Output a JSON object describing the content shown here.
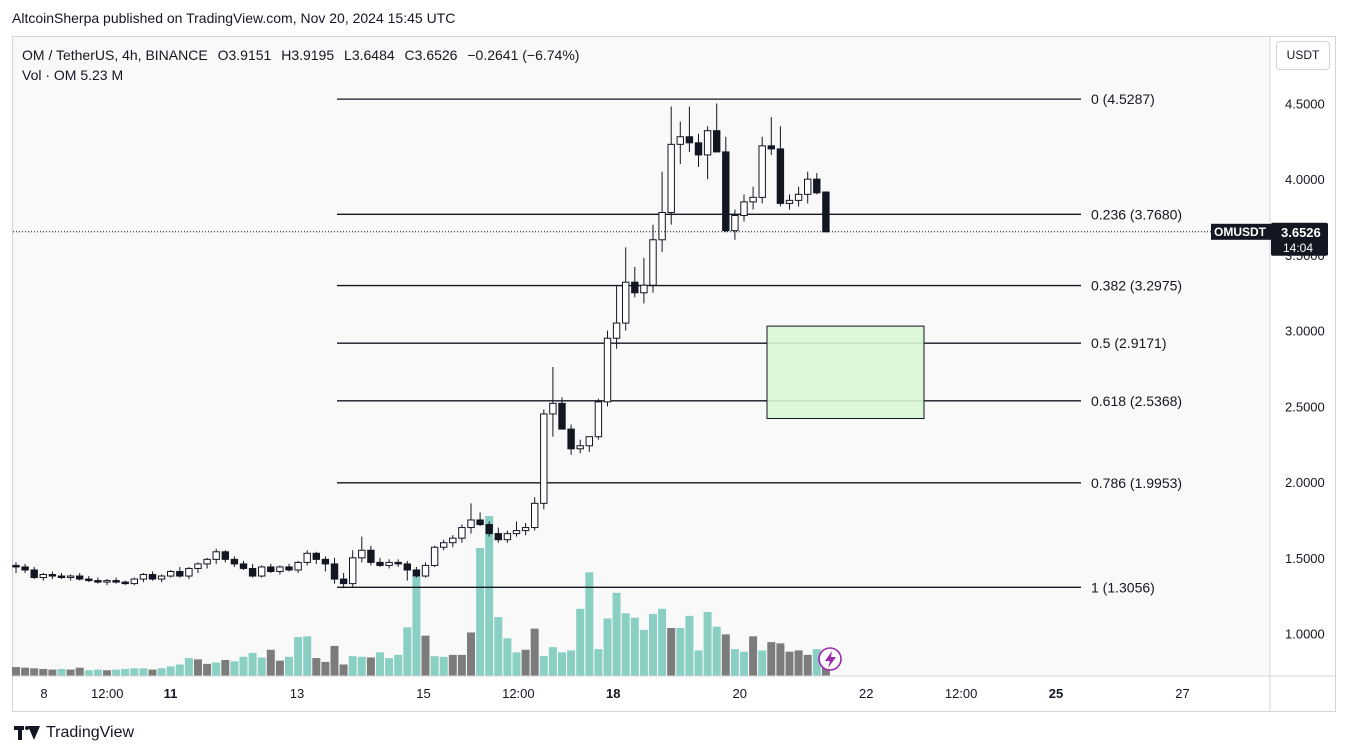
{
  "publisher": "AltcoinSherpa published on TradingView.com, Nov 20, 2024 15:45 UTC",
  "header": {
    "symbol": "OM / TetherUS, 4h, BINANCE",
    "open": "O3.9151",
    "high": "H3.9195",
    "low": "L3.6484",
    "close": "C3.6526",
    "change": "−0.2641 (−6.74%)",
    "volume": "Vol · OM  5.23 M"
  },
  "currency_button": "USDT",
  "footer_brand": "TradingView",
  "colors": {
    "up_body": "#ffffff",
    "down_body": "#131722",
    "candle_outline": "#131722",
    "volume_up": "#89cfc3",
    "volume_down": "#7c7c7c",
    "fib_line": "#131722",
    "zone_fill": "#d7f5d4",
    "zone_border": "#131722",
    "price_label_bg": "#131722",
    "flash_icon": "#9c27b0"
  },
  "chart_data": {
    "type": "candlestick",
    "symbol_label": "OMUSDT",
    "last_price": "3.6526",
    "countdown": "14:04",
    "last_value": 3.6526,
    "ylim": [
      0.72,
      4.8
    ],
    "y_ticks": [
      {
        "value": 4.5,
        "label": "4.5000"
      },
      {
        "value": 4.0,
        "label": "4.0000"
      },
      {
        "value": 3.5,
        "label": "3.5000"
      },
      {
        "value": 3.0,
        "label": "3.0000"
      },
      {
        "value": 2.5,
        "label": "2.5000"
      },
      {
        "value": 2.0,
        "label": "2.0000"
      },
      {
        "value": 1.5,
        "label": "1.5000"
      },
      {
        "value": 1.0,
        "label": "1.0000"
      }
    ],
    "x_ticks": [
      {
        "day": 8,
        "label": "8",
        "bold": false
      },
      {
        "day": 8.5,
        "label": "12:00",
        "bold": false
      },
      {
        "day": 9,
        "label": "11",
        "bold": true
      },
      {
        "day": 10,
        "label": "13",
        "bold": false
      },
      {
        "day": 11,
        "label": "15",
        "bold": false
      },
      {
        "day": 11.75,
        "label": "12:00",
        "bold": false
      },
      {
        "day": 12.5,
        "label": "18",
        "bold": true
      },
      {
        "day": 13.5,
        "label": "20",
        "bold": false
      },
      {
        "day": 14.5,
        "label": "22",
        "bold": false
      },
      {
        "day": 15.25,
        "label": "12:00",
        "bold": false
      },
      {
        "day": 16,
        "label": "25",
        "bold": true
      },
      {
        "day": 17,
        "label": "27",
        "bold": false
      }
    ],
    "fib_levels": [
      {
        "ratio": "0",
        "value": 4.5287,
        "label": "0 (4.5287)"
      },
      {
        "ratio": "0.236",
        "value": 3.768,
        "label": "0.236 (3.7680)"
      },
      {
        "ratio": "0.382",
        "value": 3.2975,
        "label": "0.382 (3.2975)"
      },
      {
        "ratio": "0.5",
        "value": 2.9171,
        "label": "0.5 (2.9171)"
      },
      {
        "ratio": "0.618",
        "value": 2.5368,
        "label": "0.618 (2.5368)"
      },
      {
        "ratio": "0.786",
        "value": 1.9953,
        "label": "0.786 (1.9953)"
      },
      {
        "ratio": "1",
        "value": 1.3056,
        "label": "1 (1.3056)"
      }
    ],
    "zone": {
      "top": 3.03,
      "bottom": 2.42
    },
    "candles": [
      [
        1.45,
        1.47,
        1.4,
        1.44
      ],
      [
        1.44,
        1.46,
        1.4,
        1.42
      ],
      [
        1.42,
        1.44,
        1.36,
        1.37
      ],
      [
        1.37,
        1.4,
        1.35,
        1.39
      ],
      [
        1.39,
        1.41,
        1.36,
        1.38
      ],
      [
        1.38,
        1.4,
        1.36,
        1.37
      ],
      [
        1.37,
        1.39,
        1.35,
        1.38
      ],
      [
        1.38,
        1.4,
        1.35,
        1.36
      ],
      [
        1.36,
        1.38,
        1.34,
        1.35
      ],
      [
        1.35,
        1.37,
        1.33,
        1.34
      ],
      [
        1.34,
        1.36,
        1.32,
        1.35
      ],
      [
        1.35,
        1.37,
        1.33,
        1.34
      ],
      [
        1.34,
        1.35,
        1.32,
        1.33
      ],
      [
        1.33,
        1.37,
        1.32,
        1.36
      ],
      [
        1.36,
        1.4,
        1.34,
        1.39
      ],
      [
        1.39,
        1.41,
        1.35,
        1.36
      ],
      [
        1.36,
        1.39,
        1.34,
        1.38
      ],
      [
        1.38,
        1.42,
        1.37,
        1.41
      ],
      [
        1.41,
        1.44,
        1.37,
        1.38
      ],
      [
        1.38,
        1.44,
        1.36,
        1.43
      ],
      [
        1.43,
        1.47,
        1.4,
        1.46
      ],
      [
        1.46,
        1.5,
        1.43,
        1.49
      ],
      [
        1.49,
        1.56,
        1.46,
        1.54
      ],
      [
        1.54,
        1.55,
        1.47,
        1.49
      ],
      [
        1.49,
        1.51,
        1.44,
        1.46
      ],
      [
        1.46,
        1.48,
        1.42,
        1.43
      ],
      [
        1.43,
        1.46,
        1.37,
        1.38
      ],
      [
        1.38,
        1.45,
        1.37,
        1.44
      ],
      [
        1.44,
        1.46,
        1.4,
        1.41
      ],
      [
        1.41,
        1.45,
        1.39,
        1.44
      ],
      [
        1.44,
        1.46,
        1.41,
        1.42
      ],
      [
        1.42,
        1.48,
        1.4,
        1.47
      ],
      [
        1.47,
        1.55,
        1.45,
        1.53
      ],
      [
        1.53,
        1.54,
        1.46,
        1.49
      ],
      [
        1.49,
        1.51,
        1.41,
        1.46
      ],
      [
        1.46,
        1.5,
        1.33,
        1.36
      ],
      [
        1.36,
        1.4,
        1.3,
        1.33
      ],
      [
        1.33,
        1.55,
        1.31,
        1.5
      ],
      [
        1.5,
        1.64,
        1.47,
        1.55
      ],
      [
        1.55,
        1.58,
        1.45,
        1.47
      ],
      [
        1.47,
        1.5,
        1.44,
        1.45
      ],
      [
        1.45,
        1.49,
        1.43,
        1.47
      ],
      [
        1.47,
        1.49,
        1.44,
        1.46
      ],
      [
        1.46,
        1.48,
        1.35,
        1.42
      ],
      [
        1.42,
        1.44,
        1.37,
        1.38
      ],
      [
        1.38,
        1.47,
        1.37,
        1.45
      ],
      [
        1.45,
        1.58,
        1.44,
        1.57
      ],
      [
        1.57,
        1.62,
        1.55,
        1.6
      ],
      [
        1.6,
        1.65,
        1.57,
        1.63
      ],
      [
        1.63,
        1.72,
        1.6,
        1.7
      ],
      [
        1.7,
        1.86,
        1.66,
        1.75
      ],
      [
        1.75,
        1.8,
        1.71,
        1.72
      ],
      [
        1.72,
        1.74,
        1.64,
        1.66
      ],
      [
        1.66,
        1.7,
        1.6,
        1.62
      ],
      [
        1.62,
        1.68,
        1.6,
        1.66
      ],
      [
        1.66,
        1.74,
        1.64,
        1.68
      ],
      [
        1.68,
        1.73,
        1.65,
        1.7
      ],
      [
        1.7,
        1.9,
        1.68,
        1.86
      ],
      [
        1.86,
        2.48,
        1.82,
        2.45
      ],
      [
        2.45,
        2.76,
        2.3,
        2.52
      ],
      [
        2.52,
        2.56,
        2.35,
        2.35
      ],
      [
        2.35,
        2.38,
        2.18,
        2.22
      ],
      [
        2.22,
        2.28,
        2.19,
        2.24
      ],
      [
        2.24,
        2.3,
        2.2,
        2.3
      ],
      [
        2.3,
        2.55,
        2.28,
        2.53
      ],
      [
        2.53,
        3.0,
        2.5,
        2.95
      ],
      [
        2.95,
        3.3,
        2.88,
        3.05
      ],
      [
        3.05,
        3.55,
        3.0,
        3.32
      ],
      [
        3.32,
        3.42,
        3.22,
        3.25
      ],
      [
        3.25,
        3.48,
        3.18,
        3.3
      ],
      [
        3.3,
        3.7,
        3.25,
        3.6
      ],
      [
        3.6,
        4.05,
        3.52,
        3.78
      ],
      [
        3.78,
        4.48,
        3.7,
        4.23
      ],
      [
        4.23,
        4.38,
        4.1,
        4.28
      ],
      [
        4.28,
        4.48,
        4.18,
        4.24
      ],
      [
        4.24,
        4.3,
        4.08,
        4.16
      ],
      [
        4.16,
        4.35,
        4.0,
        4.32
      ],
      [
        4.32,
        4.5,
        4.18,
        4.18
      ],
      [
        4.18,
        4.28,
        3.65,
        3.66
      ],
      [
        3.66,
        3.8,
        3.6,
        3.76
      ],
      [
        3.76,
        3.9,
        3.72,
        3.85
      ],
      [
        3.85,
        3.95,
        3.8,
        3.88
      ],
      [
        3.88,
        4.28,
        3.84,
        4.22
      ],
      [
        4.22,
        4.41,
        4.16,
        4.2
      ],
      [
        4.2,
        4.35,
        3.82,
        3.84
      ],
      [
        3.84,
        3.9,
        3.8,
        3.86
      ],
      [
        3.86,
        3.95,
        3.82,
        3.9
      ],
      [
        3.9,
        4.05,
        3.84,
        4.0
      ],
      [
        4.0,
        4.04,
        3.9,
        3.91
      ],
      [
        3.9151,
        3.9195,
        3.6484,
        3.6526
      ]
    ],
    "volume_bars": [
      [
        0.28,
        "down"
      ],
      [
        0.26,
        "down"
      ],
      [
        0.24,
        "down"
      ],
      [
        0.22,
        "down"
      ],
      [
        0.2,
        "down"
      ],
      [
        0.22,
        "up"
      ],
      [
        0.2,
        "down"
      ],
      [
        0.26,
        "down"
      ],
      [
        0.18,
        "up"
      ],
      [
        0.2,
        "up"
      ],
      [
        0.18,
        "down"
      ],
      [
        0.2,
        "up"
      ],
      [
        0.22,
        "up"
      ],
      [
        0.24,
        "up"
      ],
      [
        0.24,
        "up"
      ],
      [
        0.2,
        "down"
      ],
      [
        0.24,
        "up"
      ],
      [
        0.3,
        "up"
      ],
      [
        0.36,
        "up"
      ],
      [
        0.56,
        "up"
      ],
      [
        0.52,
        "down"
      ],
      [
        0.38,
        "down"
      ],
      [
        0.42,
        "up"
      ],
      [
        0.5,
        "down"
      ],
      [
        0.46,
        "up"
      ],
      [
        0.6,
        "up"
      ],
      [
        0.72,
        "up"
      ],
      [
        0.58,
        "up"
      ],
      [
        0.82,
        "down"
      ],
      [
        0.48,
        "down"
      ],
      [
        0.6,
        "up"
      ],
      [
        1.22,
        "up"
      ],
      [
        1.24,
        "up"
      ],
      [
        0.56,
        "down"
      ],
      [
        0.44,
        "down"
      ],
      [
        0.94,
        "down"
      ],
      [
        0.36,
        "down"
      ],
      [
        0.62,
        "up"
      ],
      [
        0.6,
        "up"
      ],
      [
        0.58,
        "down"
      ],
      [
        0.74,
        "up"
      ],
      [
        0.56,
        "up"
      ],
      [
        0.66,
        "up"
      ],
      [
        1.52,
        "up"
      ],
      [
        3.1,
        "up"
      ],
      [
        1.26,
        "down"
      ],
      [
        0.62,
        "up"
      ],
      [
        0.6,
        "up"
      ],
      [
        0.66,
        "down"
      ],
      [
        0.66,
        "down"
      ],
      [
        1.36,
        "down"
      ],
      [
        4.0,
        "up"
      ],
      [
        5.0,
        "up"
      ],
      [
        1.84,
        "up"
      ],
      [
        1.18,
        "up"
      ],
      [
        0.74,
        "up"
      ],
      [
        0.82,
        "down"
      ],
      [
        1.48,
        "down"
      ],
      [
        0.62,
        "up"
      ],
      [
        0.9,
        "up"
      ],
      [
        0.74,
        "up"
      ],
      [
        0.8,
        "up"
      ],
      [
        2.1,
        "up"
      ],
      [
        3.24,
        "up"
      ],
      [
        0.84,
        "up"
      ],
      [
        1.8,
        "up"
      ],
      [
        2.6,
        "up"
      ],
      [
        1.96,
        "up"
      ],
      [
        1.82,
        "up"
      ],
      [
        1.44,
        "up"
      ],
      [
        1.94,
        "up"
      ],
      [
        2.1,
        "up"
      ],
      [
        1.5,
        "down"
      ],
      [
        1.5,
        "up"
      ],
      [
        1.88,
        "up"
      ],
      [
        0.8,
        "up"
      ],
      [
        2.0,
        "up"
      ],
      [
        1.54,
        "up"
      ],
      [
        1.3,
        "down"
      ],
      [
        0.84,
        "up"
      ],
      [
        0.76,
        "up"
      ],
      [
        1.24,
        "down"
      ],
      [
        0.8,
        "up"
      ],
      [
        1.06,
        "down"
      ],
      [
        1.02,
        "down"
      ],
      [
        0.76,
        "down"
      ],
      [
        0.8,
        "down"
      ],
      [
        0.66,
        "down"
      ],
      [
        0.84,
        "up"
      ],
      [
        0.66,
        "down"
      ]
    ]
  }
}
